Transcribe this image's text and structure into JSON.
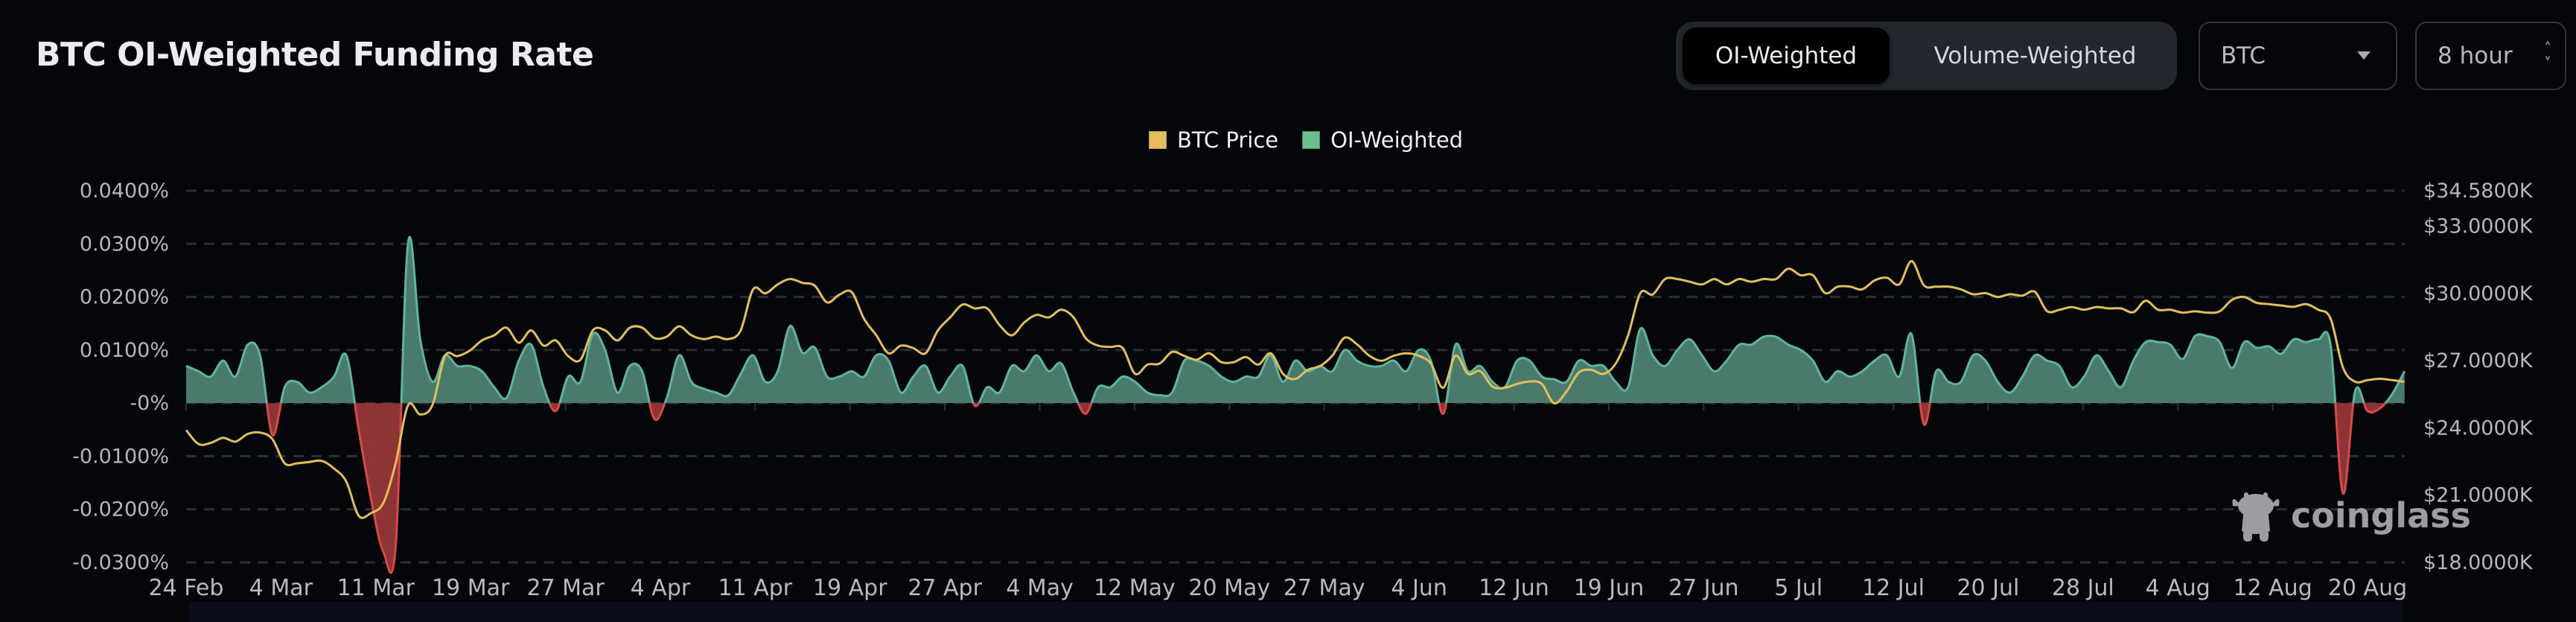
{
  "header": {
    "title": "BTC OI-Weighted Funding Rate",
    "toggle": {
      "active": "OI-Weighted",
      "other": "Volume-Weighted"
    },
    "symbol_select": {
      "value": "BTC",
      "icon": "caret-down-icon"
    },
    "interval_select": {
      "value": "8 hour",
      "icon": "up-down-chevron-icon"
    }
  },
  "logo": {
    "text": "coinglass"
  },
  "colors": {
    "background": "#050609",
    "price": "#e2bf5c",
    "positive_fill": "#4a7a6c",
    "positive_line": "#5fb49c",
    "negative_fill": "#8e3434",
    "negative_line": "#d84a4a",
    "legend_oi": "#6cc08c",
    "grid": "#2b2e35"
  },
  "chart_data": {
    "type": "line",
    "legend": {
      "placement": "top-center",
      "items": [
        {
          "label": "BTC Price",
          "color": "#e2bf5c"
        },
        {
          "label": "OI-Weighted",
          "color": "#6cc08c"
        }
      ]
    },
    "grid": true,
    "left_axis": {
      "ticks": [
        "0.0400%",
        "0.0300%",
        "0.0200%",
        "0.0100%",
        "-0%",
        "-0.0100%",
        "-0.0200%",
        "-0.0300%"
      ],
      "tick_values": [
        0.04,
        0.03,
        0.02,
        0.01,
        0,
        -0.01,
        -0.02,
        -0.03
      ],
      "ylim": [
        -0.03,
        0.04
      ],
      "unit": "%"
    },
    "right_axis": {
      "ticks": [
        "$34.5800K",
        "$33.0000K",
        "$30.0000K",
        "$27.0000K",
        "$24.0000K",
        "$21.0000K",
        "$18.0000K"
      ],
      "tick_values": [
        34.58,
        33,
        30,
        27,
        24,
        21,
        18
      ],
      "ylim": [
        18,
        34.58
      ],
      "unit": "K USD"
    },
    "x_ticks": [
      "24 Feb",
      "4 Mar",
      "11 Mar",
      "19 Mar",
      "27 Mar",
      "4 Apr",
      "11 Apr",
      "19 Apr",
      "27 Apr",
      "4 May",
      "12 May",
      "20 May",
      "27 May",
      "4 Jun",
      "12 Jun",
      "19 Jun",
      "27 Jun",
      "5 Jul",
      "12 Jul",
      "20 Jul",
      "28 Jul",
      "4 Aug",
      "12 Aug",
      "20 Aug"
    ],
    "x": [
      "24 Feb",
      "25 Feb",
      "26 Feb",
      "27 Feb",
      "28 Feb",
      "1 Mar",
      "2 Mar",
      "3 Mar",
      "4 Mar",
      "5 Mar",
      "6 Mar",
      "7 Mar",
      "8 Mar",
      "9 Mar",
      "10 Mar",
      "11 Mar",
      "12 Mar",
      "13 Mar",
      "14 Mar",
      "15 Mar",
      "16 Mar",
      "17 Mar",
      "18 Mar",
      "19 Mar",
      "20 Mar",
      "21 Mar",
      "22 Mar",
      "23 Mar",
      "24 Mar",
      "25 Mar",
      "26 Mar",
      "27 Mar",
      "28 Mar",
      "29 Mar",
      "30 Mar",
      "31 Mar",
      "1 Apr",
      "2 Apr",
      "3 Apr",
      "4 Apr",
      "5 Apr",
      "6 Apr",
      "7 Apr",
      "8 Apr",
      "9 Apr",
      "10 Apr",
      "11 Apr",
      "12 Apr",
      "13 Apr",
      "14 Apr",
      "15 Apr",
      "16 Apr",
      "17 Apr",
      "18 Apr",
      "19 Apr",
      "20 Apr",
      "21 Apr",
      "22 Apr",
      "23 Apr",
      "24 Apr",
      "25 Apr",
      "26 Apr",
      "27 Apr",
      "28 Apr",
      "29 Apr",
      "30 Apr",
      "1 May",
      "2 May",
      "3 May",
      "4 May",
      "5 May",
      "6 May",
      "7 May",
      "8 May",
      "9 May",
      "10 May",
      "11 May",
      "12 May",
      "13 May",
      "14 May",
      "15 May",
      "16 May",
      "17 May",
      "18 May",
      "19 May",
      "20 May",
      "21 May",
      "22 May",
      "23 May",
      "24 May",
      "25 May",
      "26 May",
      "27 May",
      "28 May",
      "29 May",
      "30 May",
      "31 May",
      "1 Jun",
      "2 Jun",
      "3 Jun",
      "4 Jun",
      "5 Jun",
      "6 Jun",
      "7 Jun",
      "8 Jun",
      "9 Jun",
      "10 Jun",
      "11 Jun",
      "12 Jun",
      "13 Jun",
      "14 Jun",
      "15 Jun",
      "16 Jun",
      "17 Jun",
      "18 Jun",
      "19 Jun",
      "20 Jun",
      "21 Jun",
      "22 Jun",
      "23 Jun",
      "24 Jun",
      "25 Jun",
      "26 Jun",
      "27 Jun",
      "28 Jun",
      "29 Jun",
      "30 Jun",
      "1 Jul",
      "2 Jul",
      "3 Jul",
      "4 Jul",
      "5 Jul",
      "6 Jul",
      "7 Jul",
      "8 Jul",
      "9 Jul",
      "10 Jul",
      "11 Jul",
      "12 Jul",
      "13 Jul",
      "14 Jul",
      "15 Jul",
      "16 Jul",
      "17 Jul",
      "18 Jul",
      "19 Jul",
      "20 Jul",
      "21 Jul",
      "22 Jul",
      "23 Jul",
      "24 Jul",
      "25 Jul",
      "26 Jul",
      "27 Jul",
      "28 Jul",
      "29 Jul",
      "30 Jul",
      "31 Jul",
      "1 Aug",
      "2 Aug",
      "3 Aug",
      "4 Aug",
      "5 Aug",
      "6 Aug",
      "7 Aug",
      "8 Aug",
      "9 Aug",
      "10 Aug",
      "11 Aug",
      "12 Aug",
      "13 Aug",
      "14 Aug",
      "15 Aug",
      "16 Aug",
      "17 Aug",
      "18 Aug",
      "19 Aug",
      "20 Aug",
      "21 Aug",
      "22 Aug",
      "23 Aug"
    ],
    "series": [
      {
        "name": "OI-Weighted",
        "axis": "left",
        "values": [
          0.007,
          0.006,
          0.005,
          0.008,
          0.005,
          0.011,
          0.009,
          -0.006,
          0.003,
          0.004,
          0.002,
          0.003,
          0.005,
          0.009,
          -0.005,
          -0.018,
          -0.028,
          -0.027,
          0.03,
          0.012,
          0.004,
          0.009,
          0.007,
          0.007,
          0.006,
          0.003,
          0.001,
          0.008,
          0.011,
          0.003,
          -0.0015,
          0.005,
          0.004,
          0.013,
          0.01,
          0.002,
          0.007,
          0.006,
          -0.003,
          0.001,
          0.009,
          0.004,
          0.0027,
          0.002,
          0.0015,
          0.0055,
          0.009,
          0.004,
          0.006,
          0.0145,
          0.0095,
          0.0105,
          0.005,
          0.005,
          0.006,
          0.005,
          0.009,
          0.008,
          0.002,
          0.005,
          0.007,
          0.002,
          0.005,
          0.007,
          -0.0005,
          0.003,
          0.002,
          0.007,
          0.006,
          0.009,
          0.006,
          0.0075,
          0.002,
          -0.002,
          0.003,
          0.003,
          0.005,
          0.004,
          0.002,
          0.0015,
          0.002,
          0.008,
          0.008,
          0.007,
          0.005,
          0.004,
          0.005,
          0.005,
          0.009,
          0.004,
          0.008,
          0.006,
          0.007,
          0.006,
          0.01,
          0.008,
          0.007,
          0.007,
          0.008,
          0.006,
          0.01,
          0.008,
          -0.002,
          0.011,
          0.006,
          0.007,
          0.004,
          0.003,
          0.008,
          0.008,
          0.005,
          0.0045,
          0.004,
          0.008,
          0.007,
          0.007,
          0.004,
          0.003,
          0.014,
          0.009,
          0.007,
          0.01,
          0.012,
          0.009,
          0.006,
          0.008,
          0.011,
          0.011,
          0.0125,
          0.0125,
          0.011,
          0.01,
          0.008,
          0.004,
          0.006,
          0.005,
          0.006,
          0.008,
          0.009,
          0.005,
          0.013,
          -0.004,
          0.006,
          0.004,
          0.004,
          0.009,
          0.008,
          0.004,
          0.002,
          0.005,
          0.009,
          0.008,
          0.007,
          0.003,
          0.005,
          0.009,
          0.006,
          0.003,
          0.008,
          0.0115,
          0.0115,
          0.011,
          0.0083,
          0.0126,
          0.0126,
          0.0115,
          0.0066,
          0.0115,
          0.0104,
          0.0107,
          0.0093,
          0.012,
          0.0115,
          0.012,
          0.011,
          -0.017,
          0.0023,
          -0.0015,
          -0.001,
          0.0017,
          0.006
        ]
      },
      {
        "name": "BTC Price",
        "axis": "right",
        "values": [
          23.9,
          23.28,
          23.33,
          23.56,
          23.39,
          23.73,
          23.79,
          23.5,
          22.42,
          22.42,
          22.48,
          22.53,
          22.19,
          21.6,
          20.08,
          20.2,
          20.65,
          22.42,
          25.0,
          24.6,
          25.04,
          27.2,
          27.2,
          27.44,
          27.9,
          28.13,
          28.47,
          27.8,
          28.35,
          27.67,
          27.9,
          27.2,
          27.04,
          28.35,
          28.35,
          27.9,
          28.47,
          28.47,
          28.0,
          28.07,
          28.53,
          28.13,
          27.96,
          28.07,
          27.96,
          28.35,
          30.18,
          30.0,
          30.4,
          30.64,
          30.47,
          30.35,
          29.6,
          29.94,
          30.06,
          28.87,
          28.13,
          27.33,
          27.67,
          27.56,
          27.33,
          28.35,
          28.93,
          29.5,
          29.33,
          29.33,
          28.59,
          28.13,
          28.7,
          29.04,
          28.93,
          29.27,
          28.93,
          28.0,
          27.67,
          27.61,
          27.56,
          26.41,
          26.82,
          26.87,
          27.39,
          27.21,
          27.04,
          27.33,
          26.93,
          26.93,
          27.16,
          26.82,
          27.33,
          26.41,
          26.18,
          26.59,
          26.76,
          27.22,
          28.02,
          27.73,
          27.22,
          26.99,
          27.22,
          27.33,
          27.22,
          26.87,
          25.79,
          27.22,
          26.41,
          26.53,
          25.84,
          25.79,
          25.96,
          26.07,
          25.96,
          25.1,
          25.62,
          26.47,
          26.59,
          26.41,
          26.87,
          28.13,
          30.01,
          29.95,
          30.64,
          30.64,
          30.52,
          30.4,
          30.64,
          30.4,
          30.64,
          30.52,
          30.64,
          30.64,
          31.1,
          30.81,
          30.81,
          30.01,
          30.3,
          30.3,
          30.18,
          30.58,
          30.7,
          30.4,
          31.44,
          30.36,
          30.3,
          30.3,
          30.18,
          29.96,
          30.01,
          29.84,
          29.96,
          29.9,
          30.07,
          29.21,
          29.27,
          29.39,
          29.27,
          29.39,
          29.33,
          29.33,
          29.16,
          29.67,
          29.27,
          29.27,
          29.14,
          29.2,
          29.14,
          29.2,
          29.71,
          29.84,
          29.58,
          29.52,
          29.46,
          29.4,
          29.52,
          29.27,
          28.88,
          26.7,
          26.06,
          26.13,
          26.19,
          26.13,
          26.06
        ]
      }
    ]
  }
}
